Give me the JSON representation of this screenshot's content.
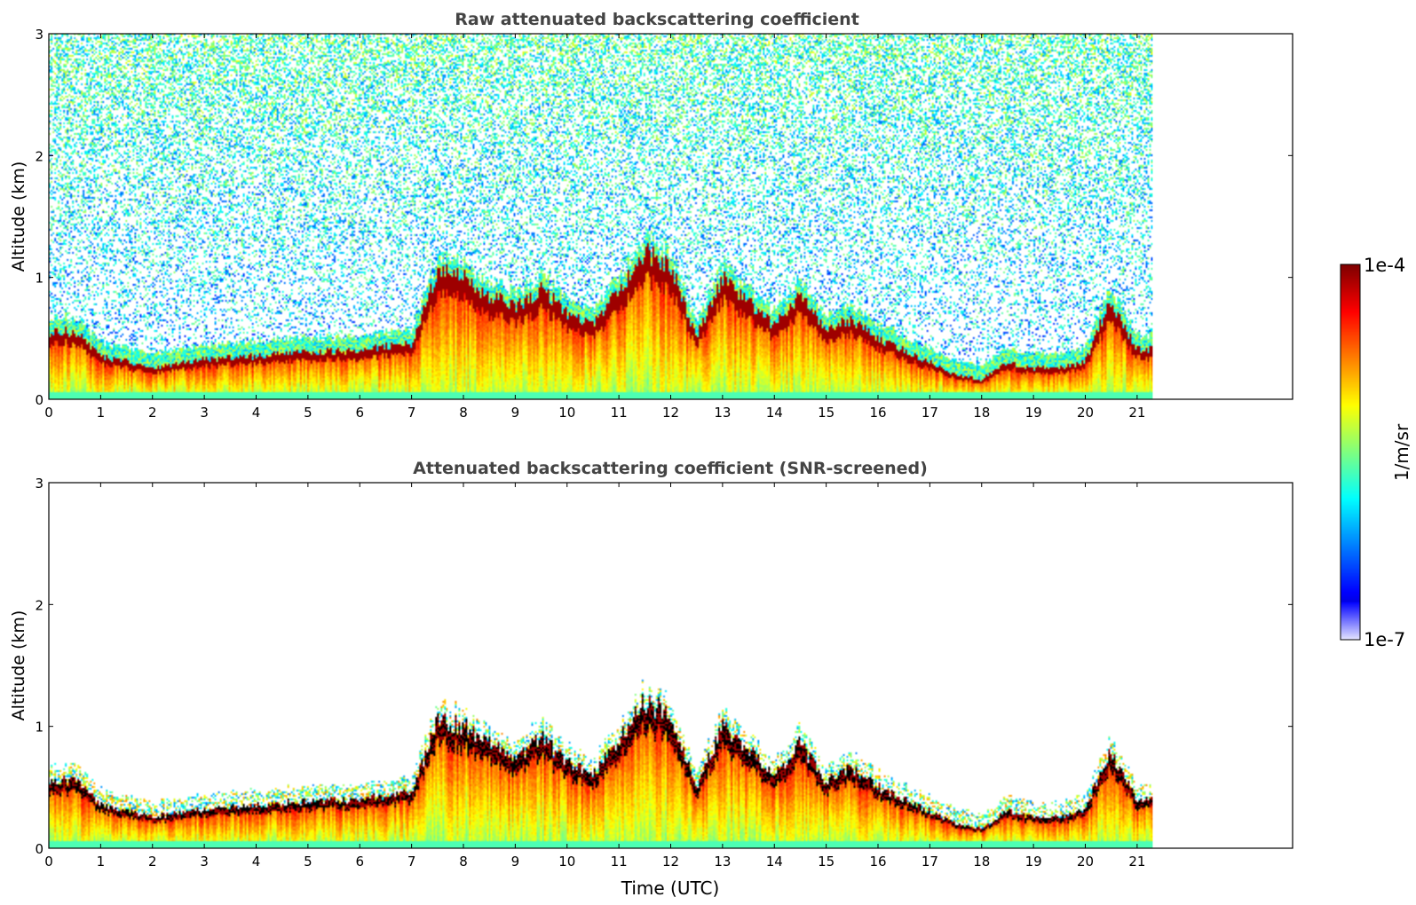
{
  "figure": {
    "colorbar": {
      "label": "1/m/sr",
      "max_label": "1e-4",
      "min_label": "1e-7",
      "scale": "log10",
      "range": [
        1e-07,
        0.0001
      ],
      "colormap": "jet"
    }
  },
  "chart_data": [
    {
      "type": "heatmap",
      "title": "Raw attenuated backscattering coefficient",
      "xlabel": "",
      "ylabel": "Altitude (km)",
      "xlim": [
        0,
        24
      ],
      "ylim": [
        0,
        3
      ],
      "xticks": [
        "0",
        "1",
        "2",
        "3",
        "4",
        "5",
        "6",
        "7",
        "8",
        "9",
        "10",
        "11",
        "12",
        "13",
        "14",
        "15",
        "16",
        "17",
        "18",
        "19",
        "20",
        "21"
      ],
      "yticks": [
        "0",
        "1",
        "2",
        "3"
      ],
      "data_extent_hours": [
        0,
        21.3
      ],
      "noise": "high",
      "approx_layer_top_km": [
        [
          0,
          0.55
        ],
        [
          0.5,
          0.55
        ],
        [
          1,
          0.35
        ],
        [
          2,
          0.25
        ],
        [
          3,
          0.32
        ],
        [
          4,
          0.35
        ],
        [
          5,
          0.38
        ],
        [
          6,
          0.4
        ],
        [
          7,
          0.45
        ],
        [
          7.5,
          1.05
        ],
        [
          8,
          1.0
        ],
        [
          8.5,
          0.85
        ],
        [
          9,
          0.75
        ],
        [
          9.5,
          0.9
        ],
        [
          10,
          0.7
        ],
        [
          10.5,
          0.6
        ],
        [
          11,
          0.9
        ],
        [
          11.5,
          1.2
        ],
        [
          12,
          1.1
        ],
        [
          12.5,
          0.5
        ],
        [
          13,
          1.0
        ],
        [
          13.5,
          0.8
        ],
        [
          14,
          0.6
        ],
        [
          14.5,
          0.85
        ],
        [
          15,
          0.55
        ],
        [
          15.5,
          0.65
        ],
        [
          16,
          0.5
        ],
        [
          16.5,
          0.4
        ],
        [
          17,
          0.3
        ],
        [
          17.5,
          0.2
        ],
        [
          18,
          0.15
        ],
        [
          18.5,
          0.3
        ],
        [
          19,
          0.25
        ],
        [
          19.5,
          0.25
        ],
        [
          20,
          0.3
        ],
        [
          20.5,
          0.8
        ],
        [
          21,
          0.4
        ],
        [
          21.3,
          0.4
        ]
      ]
    },
    {
      "type": "heatmap",
      "title": "Attenuated backscattering coefficient (SNR-screened)",
      "xlabel": "Time (UTC)",
      "ylabel": "Altitude (km)",
      "xlim": [
        0,
        24
      ],
      "ylim": [
        0,
        3
      ],
      "xticks": [
        "0",
        "1",
        "2",
        "3",
        "4",
        "5",
        "6",
        "7",
        "8",
        "9",
        "10",
        "11",
        "12",
        "13",
        "14",
        "15",
        "16",
        "17",
        "18",
        "19",
        "20",
        "21"
      ],
      "yticks": [
        "0",
        "1",
        "2",
        "3"
      ],
      "data_extent_hours": [
        0,
        21.3
      ],
      "noise": "screened",
      "approx_layer_top_km": [
        [
          0,
          0.55
        ],
        [
          0.5,
          0.55
        ],
        [
          1,
          0.35
        ],
        [
          2,
          0.25
        ],
        [
          3,
          0.32
        ],
        [
          4,
          0.35
        ],
        [
          5,
          0.38
        ],
        [
          6,
          0.4
        ],
        [
          7,
          0.45
        ],
        [
          7.5,
          1.05
        ],
        [
          8,
          1.0
        ],
        [
          8.5,
          0.85
        ],
        [
          9,
          0.75
        ],
        [
          9.5,
          0.9
        ],
        [
          10,
          0.7
        ],
        [
          10.5,
          0.6
        ],
        [
          11,
          0.9
        ],
        [
          11.5,
          1.2
        ],
        [
          12,
          1.1
        ],
        [
          12.5,
          0.5
        ],
        [
          13,
          1.0
        ],
        [
          13.5,
          0.8
        ],
        [
          14,
          0.6
        ],
        [
          14.5,
          0.85
        ],
        [
          15,
          0.55
        ],
        [
          15.5,
          0.65
        ],
        [
          16,
          0.5
        ],
        [
          16.5,
          0.4
        ],
        [
          17,
          0.3
        ],
        [
          17.5,
          0.2
        ],
        [
          18,
          0.15
        ],
        [
          18.5,
          0.3
        ],
        [
          19,
          0.25
        ],
        [
          19.5,
          0.25
        ],
        [
          20,
          0.3
        ],
        [
          20.5,
          0.8
        ],
        [
          21,
          0.4
        ],
        [
          21.3,
          0.4
        ]
      ]
    }
  ]
}
